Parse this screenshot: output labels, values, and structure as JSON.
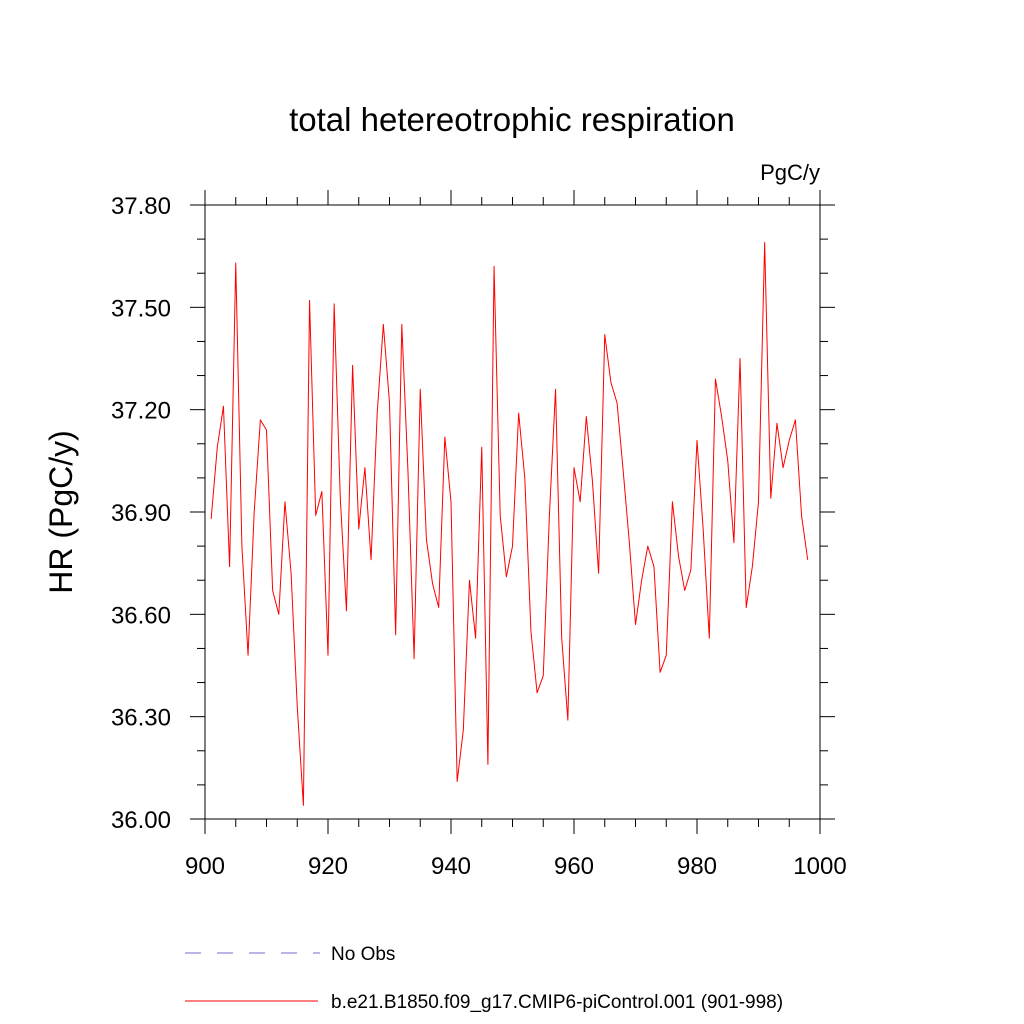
{
  "chart_data": {
    "type": "line",
    "title": "total hetereotrophic respiration",
    "units": "PgC/y",
    "ylabel": "HR  (PgC/y)",
    "xlabel": "",
    "xlim": [
      900,
      1000
    ],
    "ylim": [
      36.0,
      37.8
    ],
    "x_ticks": [
      900,
      920,
      940,
      960,
      980,
      1000
    ],
    "x_tick_labels": [
      "900",
      "920",
      "940",
      "960",
      "980",
      "1000"
    ],
    "y_ticks": [
      36.0,
      36.3,
      36.6,
      36.9,
      37.2,
      37.5,
      37.8
    ],
    "y_tick_labels": [
      "36.00",
      "36.30",
      "36.60",
      "36.90",
      "37.20",
      "37.50",
      "37.80"
    ],
    "x_minor_step": 5,
    "y_minor_step": 0.1,
    "grid": false,
    "legend_position": "bottom",
    "series": [
      {
        "name": "b.e21.B1850.f09_g17.CMIP6-piControl.001 (901-998)",
        "color": "#ff0000",
        "x_start": 901,
        "x_step": 1,
        "values": [
          36.88,
          37.09,
          37.21,
          36.74,
          37.63,
          36.8,
          36.48,
          36.9,
          37.17,
          37.14,
          36.67,
          36.6,
          36.93,
          36.72,
          36.33,
          36.04,
          37.52,
          36.89,
          36.96,
          36.48,
          37.51,
          36.94,
          36.61,
          37.33,
          36.85,
          37.03,
          36.76,
          37.19,
          37.45,
          37.22,
          36.54,
          37.45,
          37.02,
          36.47,
          37.26,
          36.82,
          36.69,
          36.62,
          37.12,
          36.93,
          36.11,
          36.26,
          36.7,
          36.53,
          37.09,
          36.16,
          37.62,
          36.89,
          36.71,
          36.8,
          37.19,
          37.0,
          36.55,
          36.37,
          36.42,
          36.89,
          37.26,
          36.53,
          36.29,
          37.03,
          36.93,
          37.18,
          36.99,
          36.72,
          37.42,
          37.28,
          37.22,
          37.02,
          36.81,
          36.57,
          36.7,
          36.8,
          36.74,
          36.43,
          36.48,
          36.93,
          36.77,
          36.67,
          36.73,
          37.11,
          36.85,
          36.53,
          37.29,
          37.18,
          37.05,
          36.81,
          37.35,
          36.62,
          36.74,
          36.93,
          37.69,
          36.94,
          37.16,
          37.03,
          37.11,
          37.17,
          36.89,
          36.76
        ]
      }
    ],
    "legend": [
      {
        "label": "No Obs",
        "color": "#6f6fd0",
        "style": "dashed"
      },
      {
        "label": "b.e21.B1850.f09_g17.CMIP6-piControl.001 (901-998)",
        "color": "#ff0000",
        "style": "solid"
      }
    ]
  }
}
